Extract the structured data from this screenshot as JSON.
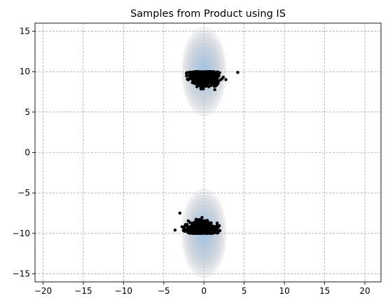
{
  "chart_data": {
    "type": "scatter",
    "title": "Samples from Product using IS",
    "xlabel": "",
    "ylabel": "",
    "xlim": [
      -21,
      22
    ],
    "ylim": [
      -16,
      16
    ],
    "xticks": [
      -20,
      -15,
      -10,
      -5,
      0,
      5,
      10,
      15,
      20
    ],
    "yticks": [
      -15,
      -10,
      -5,
      0,
      5,
      10,
      15
    ],
    "xtick_labels": [
      "−20",
      "−15",
      "−10",
      "−5",
      "0",
      "5",
      "10",
      "15",
      "20"
    ],
    "ytick_labels": [
      "−15",
      "−10",
      "−5",
      "0",
      "5",
      "10",
      "15"
    ],
    "grid": true,
    "grid_style": "dashed",
    "background_density": {
      "kind": "contour",
      "colormap": "blue-purple",
      "modes": [
        {
          "center": [
            0,
            10
          ],
          "sx": 1.3,
          "sy": 2.6
        },
        {
          "center": [
            0,
            -10
          ],
          "sx": 1.3,
          "sy": 2.6
        }
      ]
    },
    "series": [
      {
        "marker_color": "#000000",
        "clusters": [
          {
            "x_range": [
              -3,
              3.2
            ],
            "y_range": [
              6.8,
              9.9
            ],
            "flat_edge": "top",
            "edge_y": 10
          },
          {
            "x_range": [
              -3.5,
              3.0
            ],
            "y_range": [
              -10.0,
              -7.3
            ],
            "flat_edge": "bottom",
            "edge_y": -10
          }
        ],
        "outliers": [
          {
            "x": 4.2,
            "y": 9.9
          },
          {
            "x": -3.6,
            "y": -9.6
          },
          {
            "x": -3.0,
            "y": -7.5
          }
        ]
      }
    ]
  }
}
